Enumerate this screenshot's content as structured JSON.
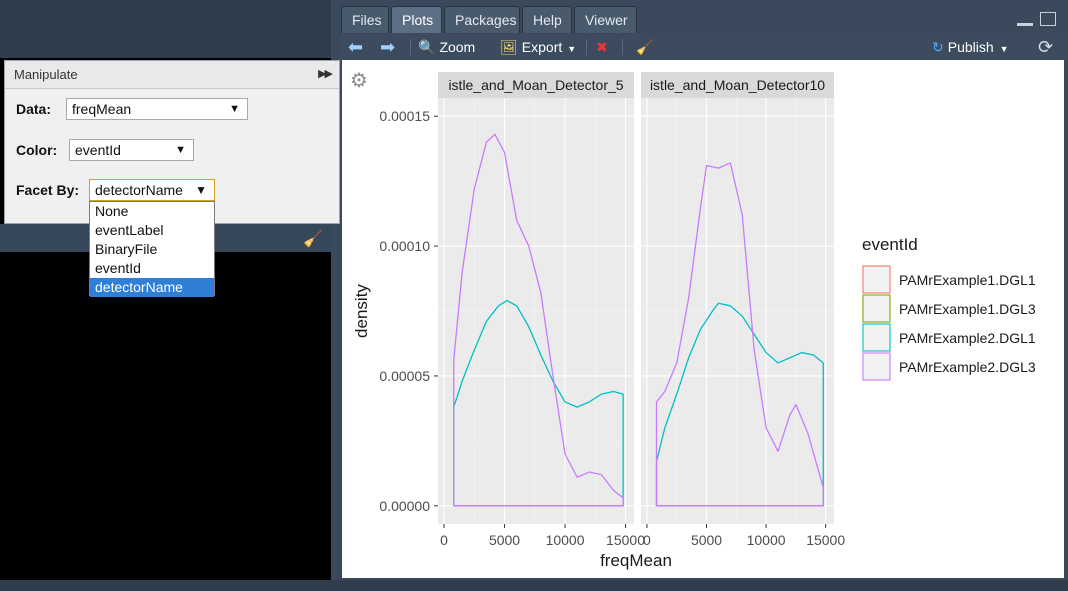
{
  "tabs": [
    {
      "label": "Files",
      "active": false
    },
    {
      "label": "Plots",
      "active": true
    },
    {
      "label": "Packages",
      "active": false
    },
    {
      "label": "Help",
      "active": false
    },
    {
      "label": "Viewer",
      "active": false
    }
  ],
  "toolbar": {
    "zoom_label": "Zoom",
    "export_label": "Export",
    "publish_label": "Publish"
  },
  "manipulate": {
    "title": "Manipulate",
    "data_label": "Data:",
    "data_value": "freqMean",
    "color_label": "Color:",
    "color_value": "eventId",
    "facet_label": "Facet By:",
    "facet_value": "detectorName",
    "facet_options": [
      "None",
      "eventLabel",
      "BinaryFile",
      "eventId",
      "detectorName"
    ],
    "facet_selected_index": 4
  },
  "chart_data": {
    "type": "line",
    "subtype": "density",
    "xlabel": "freqMean",
    "ylabel": "density",
    "xlim": [
      -500,
      15700
    ],
    "ylim": [
      -7e-06,
      0.000157
    ],
    "x_ticks": [
      0,
      5000,
      10000,
      15000
    ],
    "x_tick_labels": [
      "0",
      "5000",
      "10000",
      "15000"
    ],
    "y_ticks": [
      0.0,
      5e-05,
      0.0001,
      0.00015
    ],
    "y_tick_labels": [
      "0.00000",
      "0.00005",
      "0.00010",
      "0.00015"
    ],
    "legend_title": "eventId",
    "legend_position": "right",
    "legend": [
      {
        "name": "PAMrExample1.DGL1",
        "color": "#F8766D"
      },
      {
        "name": "PAMrExample1.DGL3",
        "color": "#7CAE00"
      },
      {
        "name": "PAMrExample2.DGL1",
        "color": "#00BFC4"
      },
      {
        "name": "PAMrExample2.DGL3",
        "color": "#C77CFF"
      }
    ],
    "facets": [
      {
        "label": "istle_and_Moan_Detector_5",
        "series": [
          {
            "name": "PAMrExample2.DGL1",
            "color": "#00BFC4",
            "x": [
              800,
              1500,
              2500,
              3500,
              4500,
              5200,
              6000,
              7000,
              8000,
              9000,
              10000,
              11000,
              12000,
              13000,
              14000,
              14800
            ],
            "y": [
              3.8e-05,
              4.8e-05,
              6e-05,
              7.1e-05,
              7.7e-05,
              7.9e-05,
              7.7e-05,
              6.9e-05,
              5.8e-05,
              4.8e-05,
              4e-05,
              3.8e-05,
              4e-05,
              4.3e-05,
              4.4e-05,
              4.3e-05
            ]
          },
          {
            "name": "PAMrExample2.DGL3",
            "color": "#C77CFF",
            "x": [
              800,
              1500,
              2500,
              3500,
              4200,
              5000,
              6000,
              7000,
              8000,
              9000,
              10000,
              11000,
              12000,
              13000,
              14000,
              14800
            ],
            "y": [
              5.6e-05,
              9e-05,
              0.000122,
              0.00014,
              0.000143,
              0.000136,
              0.00011,
              0.0001,
              8.2e-05,
              5e-05,
              2e-05,
              1.1e-05,
              1.3e-05,
              1.2e-05,
              6e-06,
              3e-06
            ]
          }
        ]
      },
      {
        "label": "istle_and_Moan_Detector10",
        "series": [
          {
            "name": "PAMrExample2.DGL1",
            "color": "#00BFC4",
            "x": [
              800,
              1500,
              2500,
              3500,
              4500,
              5500,
              6000,
              7000,
              8000,
              9000,
              10000,
              11000,
              12000,
              13000,
              14000,
              14800
            ],
            "y": [
              1.7e-05,
              3e-05,
              4.3e-05,
              5.7e-05,
              6.8e-05,
              7.5e-05,
              7.8e-05,
              7.7e-05,
              7.3e-05,
              6.6e-05,
              5.9e-05,
              5.5e-05,
              5.7e-05,
              5.9e-05,
              5.8e-05,
              5.5e-05
            ]
          },
          {
            "name": "PAMrExample2.DGL3",
            "color": "#C77CFF",
            "x": [
              800,
              1500,
              2500,
              3500,
              4500,
              5000,
              6000,
              7000,
              8000,
              9000,
              10000,
              11000,
              12000,
              12500,
              13500,
              14800
            ],
            "y": [
              4e-05,
              4.4e-05,
              5.5e-05,
              8e-05,
              0.000115,
              0.000131,
              0.00013,
              0.000132,
              0.000112,
              6e-05,
              3e-05,
              2.1e-05,
              3.5e-05,
              3.9e-05,
              2.8e-05,
              7e-06
            ]
          }
        ]
      }
    ]
  }
}
